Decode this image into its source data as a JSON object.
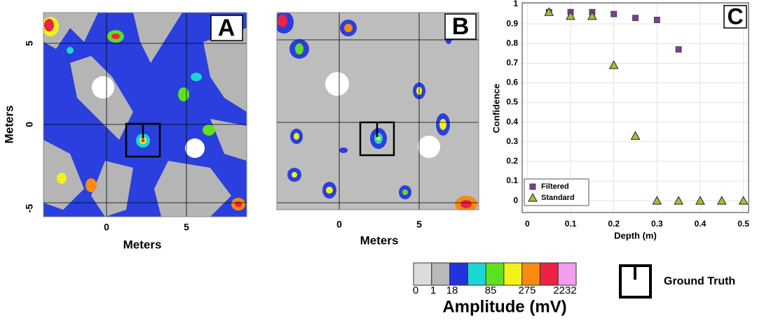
{
  "panels": {
    "A": {
      "label": "A",
      "xlabel": "Meters",
      "ylabel": "Meters",
      "xticks": [
        "0",
        "5"
      ],
      "yticks": [
        "5",
        "0",
        "-5"
      ]
    },
    "B": {
      "label": "B",
      "xlabel": "Meters",
      "xticks": [
        "0",
        "5"
      ]
    }
  },
  "chart_data": {
    "type": "scatter",
    "panel_label": "C",
    "xlabel": "Depth (m)",
    "ylabel": "Confidence",
    "xlim": [
      -0.012,
      0.512
    ],
    "ylim": [
      -0.06,
      1.0
    ],
    "xticks": [
      0,
      0.1,
      0.2,
      0.3,
      0.4,
      0.5
    ],
    "yticks": [
      0,
      0.1,
      0.2,
      0.3,
      0.4,
      0.5,
      0.6,
      0.7,
      0.8,
      0.9,
      1
    ],
    "grid": true,
    "legend": "lower left",
    "series": [
      {
        "name": "Filtered",
        "marker": "square",
        "color": "#7e3f98",
        "x": [
          0.05,
          0.1,
          0.15,
          0.2,
          0.25,
          0.3,
          0.35
        ],
        "values": [
          0.96,
          0.96,
          0.96,
          0.95,
          0.93,
          0.92,
          0.77
        ]
      },
      {
        "name": "Standard",
        "marker": "triangle",
        "color": "#9cc33c",
        "x": [
          0.05,
          0.1,
          0.15,
          0.2,
          0.25,
          0.3,
          0.35,
          0.4,
          0.45,
          0.5
        ],
        "values": [
          0.96,
          0.94,
          0.94,
          0.69,
          0.33,
          0,
          0,
          0,
          0,
          0
        ]
      }
    ]
  },
  "colorbar": {
    "title": "Amplitude (mV)",
    "colors": [
      "#dcdcdc",
      "#b9b9b9",
      "#2233dd",
      "#1cd6d6",
      "#5ee01e",
      "#f2f21a",
      "#f88a12",
      "#ee2244",
      "#f29cf2"
    ],
    "labels": [
      "0",
      "1",
      "18",
      "85",
      "275",
      "2232"
    ]
  },
  "legend_key": {
    "label": "Ground Truth"
  }
}
